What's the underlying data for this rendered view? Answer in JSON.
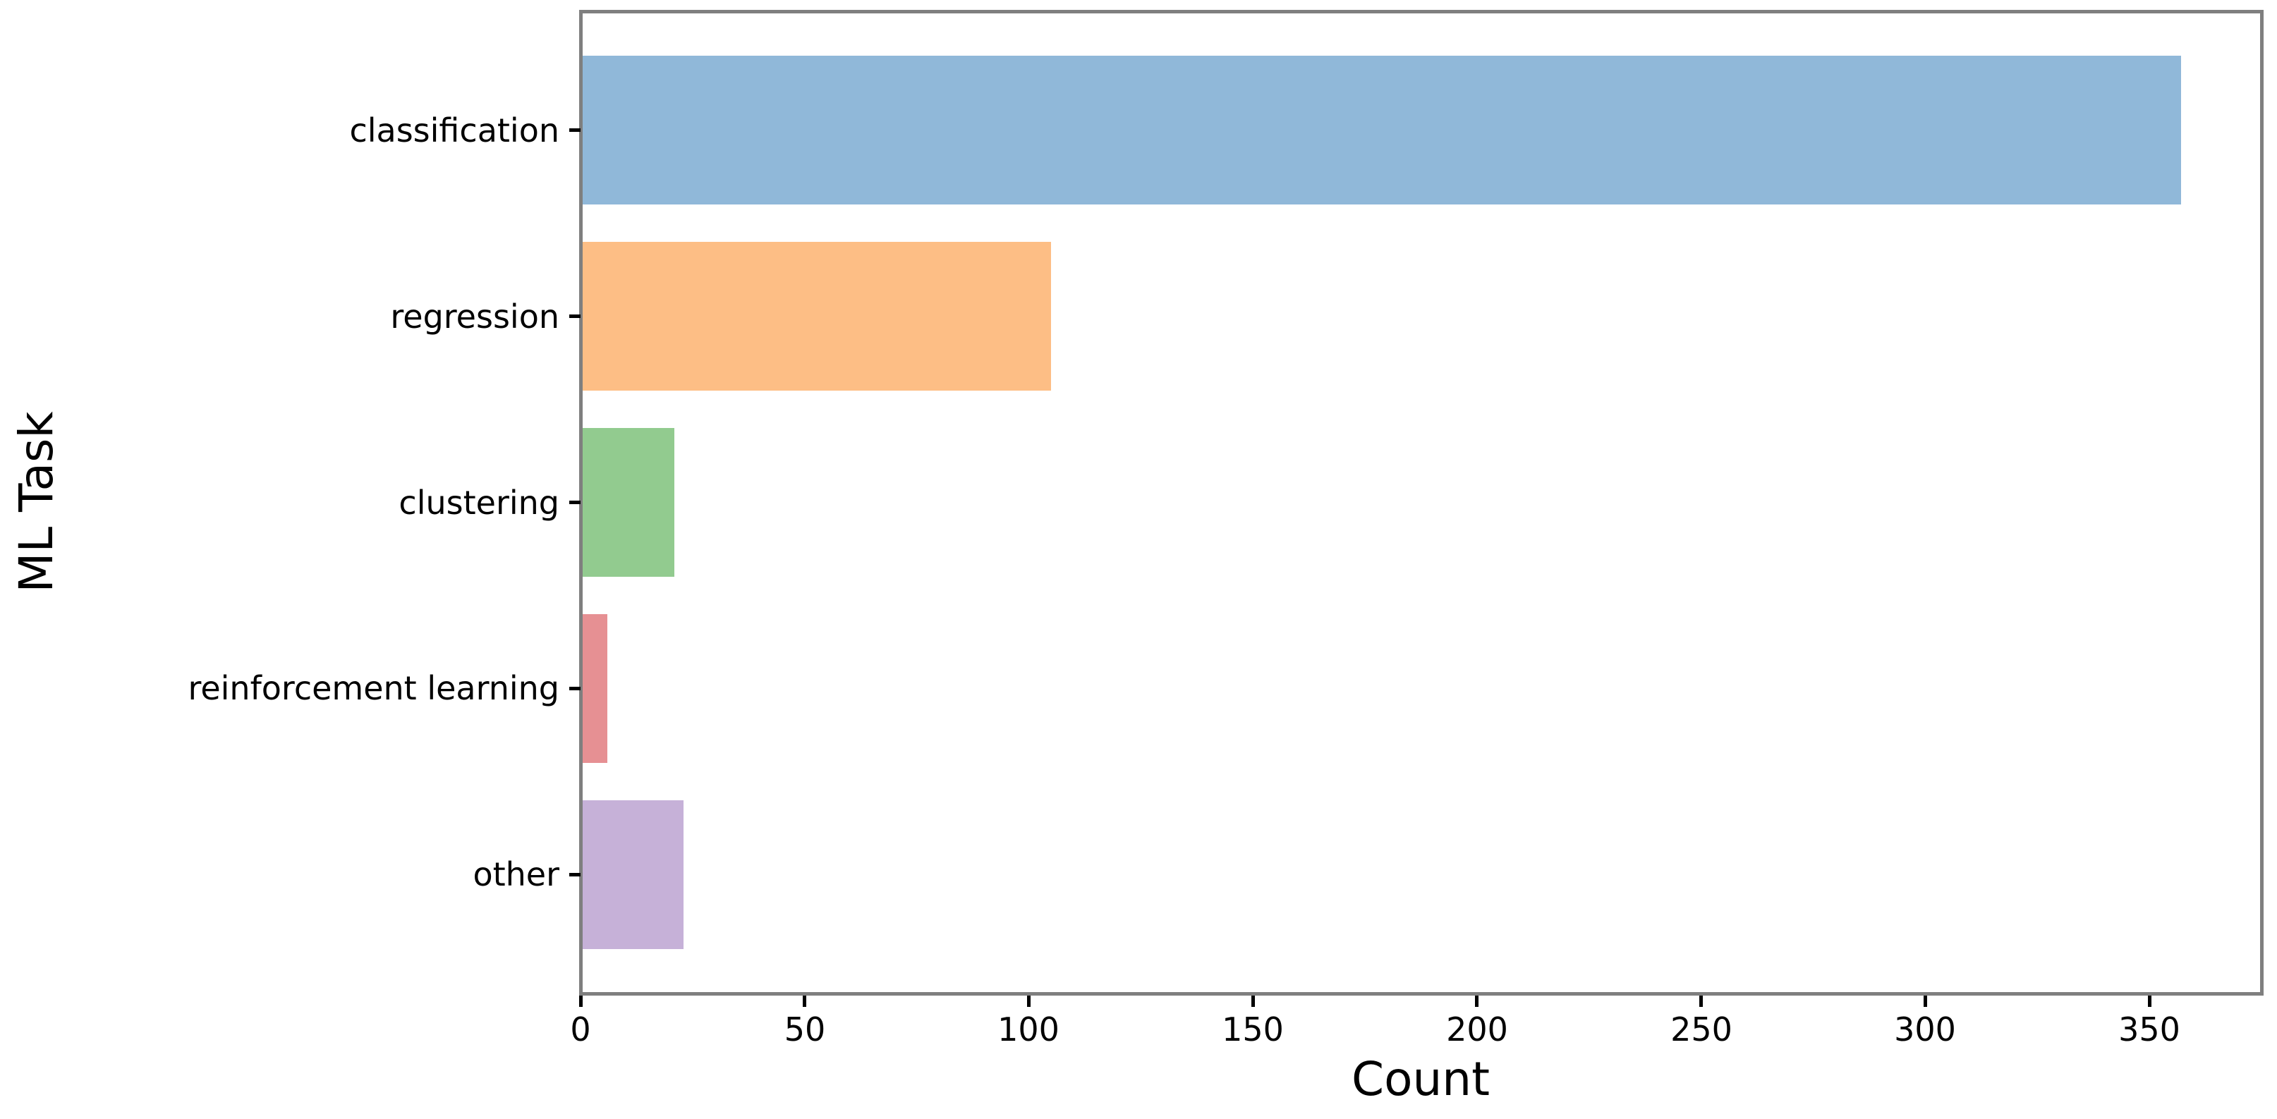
{
  "chart_data": {
    "type": "bar",
    "orientation": "horizontal",
    "title": "",
    "xlabel": "Count",
    "ylabel": "ML Task",
    "categories": [
      "classification",
      "regression",
      "clustering",
      "reinforcement learning",
      "other"
    ],
    "values": [
      357,
      105,
      21,
      6,
      23
    ],
    "bar_colors": [
      "#90b8d9",
      "#fdbe85",
      "#92cb8f",
      "#e69093",
      "#c6b1d8"
    ],
    "xticks": [
      0,
      50,
      100,
      150,
      200,
      250,
      300,
      350
    ],
    "xlim": [
      0,
      375
    ],
    "ylim": [
      -0.64,
      4.64
    ],
    "bar_thickness": 0.8,
    "grid": false,
    "legend": null
  },
  "colors": {
    "background": "#ffffff",
    "spine": "#7f7f7f",
    "tick": "#000000",
    "text": "#000000"
  }
}
